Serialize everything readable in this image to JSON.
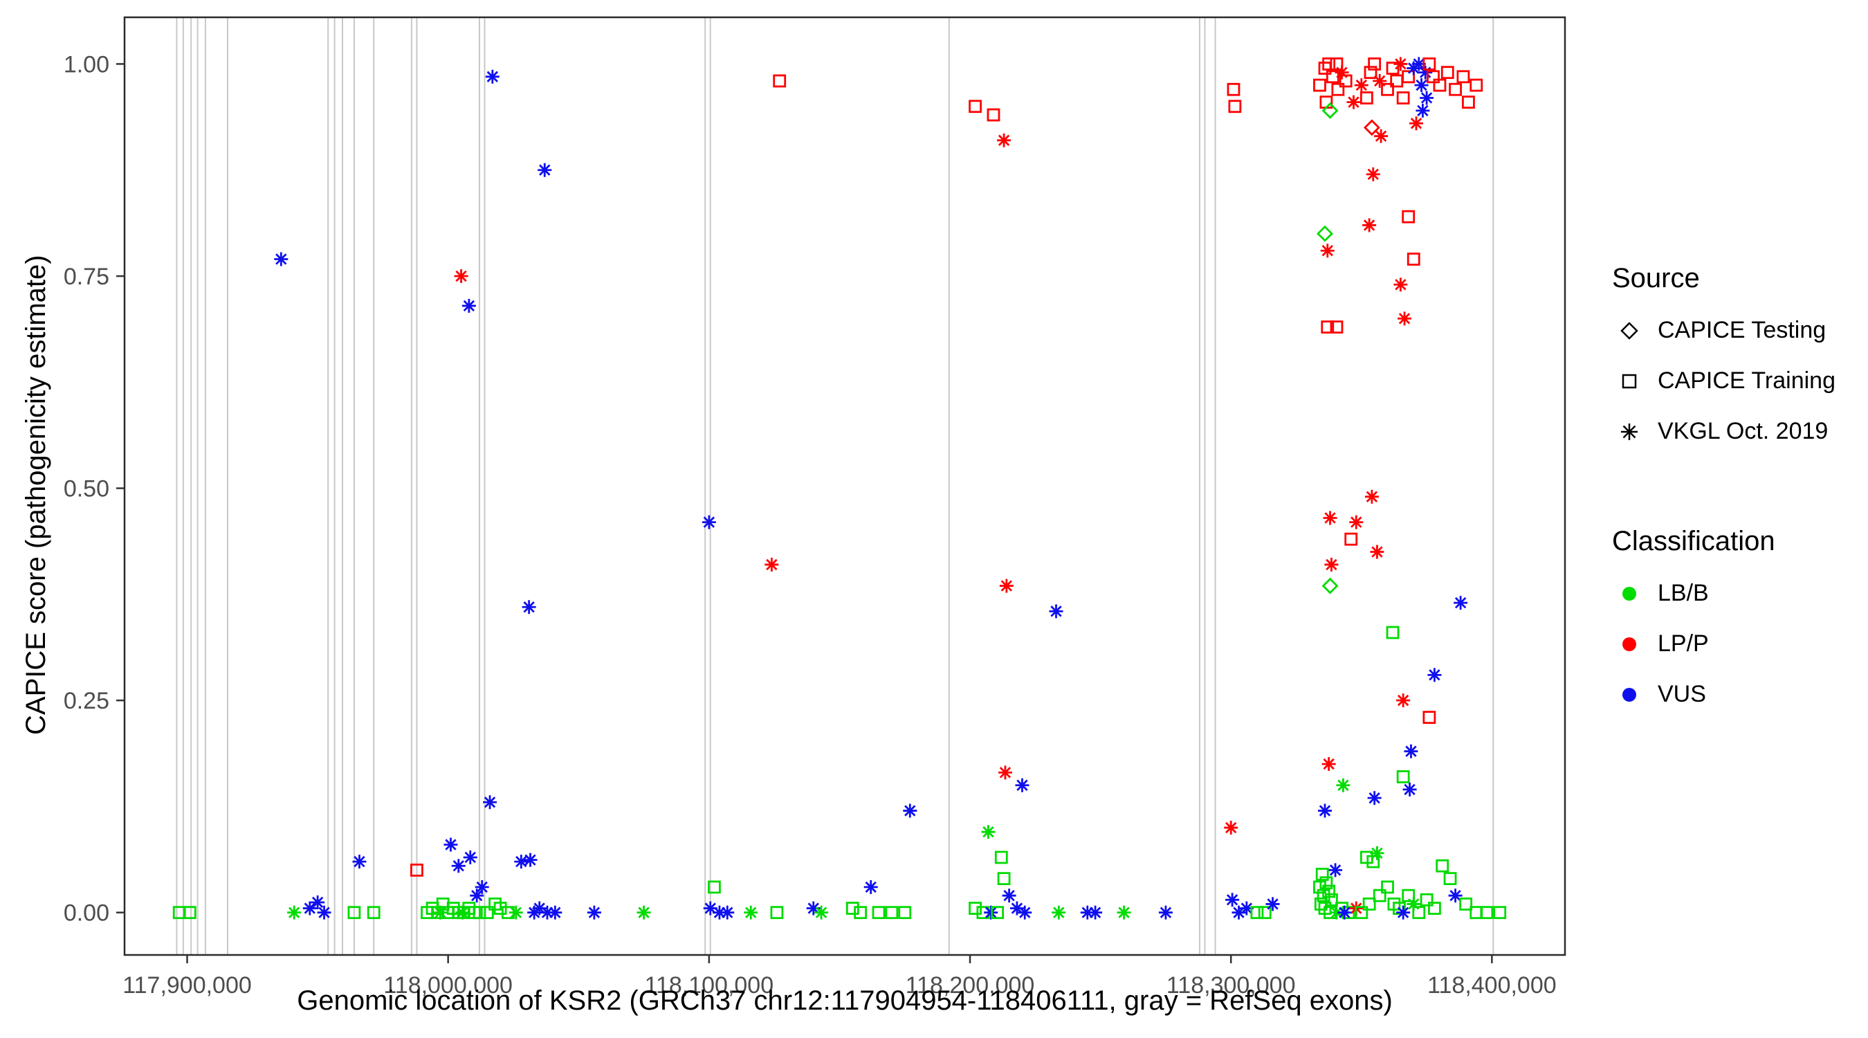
{
  "figure": {
    "background": "#FFFFFF"
  },
  "chart_data": {
    "type": "scatter",
    "title": "",
    "xlabel": "Genomic location of KSR2 (GRCh37 chr12:117904954-118406111, gray = RefSeq exons)",
    "ylabel": "CAPICE score (pathogenicity estimate)",
    "x_domain": [
      117876000,
      118428000
    ],
    "y_domain": [
      -0.05,
      1.055
    ],
    "x_ticks": [
      {
        "value": 117900000,
        "label": "117,900,000"
      },
      {
        "value": 118000000,
        "label": "118,000,000"
      },
      {
        "value": 118100000,
        "label": "118,100,000"
      },
      {
        "value": 118200000,
        "label": "118,200,000"
      },
      {
        "value": 118300000,
        "label": "118,300,000"
      },
      {
        "value": 118400000,
        "label": "118,400,000"
      }
    ],
    "y_ticks": [
      {
        "value": 0.0,
        "label": "0.00"
      },
      {
        "value": 0.25,
        "label": "0.25"
      },
      {
        "value": 0.5,
        "label": "0.50"
      },
      {
        "value": 0.75,
        "label": "0.75"
      },
      {
        "value": 1.0,
        "label": "1.00"
      }
    ],
    "grid": false,
    "legend_position": "right",
    "legend": {
      "source": {
        "title": "Source",
        "items": [
          {
            "shape": "diamond",
            "label": "CAPICE Testing"
          },
          {
            "shape": "square",
            "label": "CAPICE Training"
          },
          {
            "shape": "asterisk",
            "label": "VKGL Oct. 2019"
          }
        ]
      },
      "classification": {
        "title": "Classification",
        "items": [
          {
            "color_key": "LB/B",
            "label": "LB/B"
          },
          {
            "color_key": "LP/P",
            "label": "LP/P"
          },
          {
            "color_key": "VUS",
            "label": "VUS"
          }
        ]
      }
    },
    "colors": {
      "LB/B": "#00DB00",
      "LP/P": "#FF0000",
      "VUS": "#0F0FEE"
    },
    "shapes": {
      "test": "diamond",
      "train": "square",
      "vkgl": "asterisk"
    },
    "source_names": {
      "test": "CAPICE Testing",
      "train": "CAPICE Training",
      "vkgl": "VKGL Oct. 2019"
    },
    "exon_color": "#C8C8C8",
    "exon_note": "gray = RefSeq exons",
    "exon_positions": [
      117896000,
      117898500,
      117901500,
      117904000,
      117907000,
      117915500,
      117954000,
      117956500,
      117959500,
      117964000,
      117971500,
      117986000,
      117988000,
      118012000,
      118014000,
      118098500,
      118100500,
      118192000,
      118288000,
      118290000,
      118294000,
      118400500
    ],
    "points_format": [
      "genomic_position",
      "capice_score",
      "source",
      "classification"
    ],
    "points": [
      [
        117897000,
        0.0,
        "train",
        "LB/B"
      ],
      [
        117901000,
        0.0,
        "train",
        "LB/B"
      ],
      [
        117936000,
        0.77,
        "vkgl",
        "VUS"
      ],
      [
        117941000,
        0.0,
        "vkgl",
        "LB/B"
      ],
      [
        117947000,
        0.005,
        "vkgl",
        "VUS"
      ],
      [
        117950000,
        0.012,
        "vkgl",
        "VUS"
      ],
      [
        117952500,
        0.0,
        "vkgl",
        "VUS"
      ],
      [
        117964000,
        0.0,
        "train",
        "LB/B"
      ],
      [
        117966000,
        0.06,
        "vkgl",
        "VUS"
      ],
      [
        117971500,
        0.0,
        "train",
        "LB/B"
      ],
      [
        117988000,
        0.05,
        "train",
        "LP/P"
      ],
      [
        118005000,
        0.75,
        "vkgl",
        "LP/P"
      ],
      [
        118008000,
        0.715,
        "vkgl",
        "VUS"
      ],
      [
        118017000,
        0.985,
        "vkgl",
        "VUS"
      ],
      [
        118031000,
        0.36,
        "vkgl",
        "VUS"
      ],
      [
        118037000,
        0.875,
        "vkgl",
        "VUS"
      ],
      [
        118016000,
        0.13,
        "vkgl",
        "VUS"
      ],
      [
        118001000,
        0.08,
        "vkgl",
        "VUS"
      ],
      [
        118004000,
        0.055,
        "vkgl",
        "VUS"
      ],
      [
        118008500,
        0.065,
        "vkgl",
        "VUS"
      ],
      [
        118028000,
        0.06,
        "vkgl",
        "VUS"
      ],
      [
        118031500,
        0.062,
        "vkgl",
        "VUS"
      ],
      [
        118013000,
        0.03,
        "vkgl",
        "VUS"
      ],
      [
        118011000,
        0.02,
        "vkgl",
        "VUS"
      ],
      [
        117992000,
        0.0,
        "train",
        "LB/B"
      ],
      [
        117994000,
        0.005,
        "train",
        "LB/B"
      ],
      [
        117996000,
        0.0,
        "train",
        "LB/B"
      ],
      [
        117998000,
        0.01,
        "train",
        "LB/B"
      ],
      [
        118000000,
        0.0,
        "train",
        "LB/B"
      ],
      [
        118002000,
        0.005,
        "train",
        "LB/B"
      ],
      [
        118004000,
        0.0,
        "train",
        "LB/B"
      ],
      [
        118006000,
        0.0,
        "train",
        "LB/B"
      ],
      [
        118008000,
        0.005,
        "train",
        "LB/B"
      ],
      [
        118010000,
        0.0,
        "train",
        "LB/B"
      ],
      [
        118012000,
        0.0,
        "train",
        "LB/B"
      ],
      [
        117997000,
        0.0,
        "vkgl",
        "LB/B"
      ],
      [
        118005500,
        0.0,
        "vkgl",
        "LB/B"
      ],
      [
        118015000,
        0.0,
        "train",
        "LB/B"
      ],
      [
        118018000,
        0.01,
        "train",
        "LB/B"
      ],
      [
        118020000,
        0.005,
        "train",
        "LB/B"
      ],
      [
        118023000,
        0.0,
        "train",
        "LB/B"
      ],
      [
        118026000,
        0.0,
        "vkgl",
        "LB/B"
      ],
      [
        118033000,
        0.0,
        "vkgl",
        "VUS"
      ],
      [
        118035000,
        0.005,
        "vkgl",
        "VUS"
      ],
      [
        118038000,
        0.0,
        "vkgl",
        "VUS"
      ],
      [
        118041000,
        0.0,
        "vkgl",
        "VUS"
      ],
      [
        118056000,
        0.0,
        "vkgl",
        "VUS"
      ],
      [
        118075000,
        0.0,
        "vkgl",
        "LB/B"
      ],
      [
        118100000,
        0.46,
        "vkgl",
        "VUS"
      ],
      [
        118102000,
        0.03,
        "train",
        "LB/B"
      ],
      [
        118100500,
        0.005,
        "vkgl",
        "VUS"
      ],
      [
        118104000,
        0.0,
        "vkgl",
        "VUS"
      ],
      [
        118107000,
        0.0,
        "vkgl",
        "VUS"
      ],
      [
        118116000,
        0.0,
        "vkgl",
        "LB/B"
      ],
      [
        118127000,
        0.98,
        "train",
        "LP/P"
      ],
      [
        118124000,
        0.41,
        "vkgl",
        "LP/P"
      ],
      [
        118126000,
        0.0,
        "train",
        "LB/B"
      ],
      [
        118140000,
        0.005,
        "vkgl",
        "VUS"
      ],
      [
        118143000,
        0.0,
        "vkgl",
        "LB/B"
      ],
      [
        118155000,
        0.005,
        "train",
        "LB/B"
      ],
      [
        118158000,
        0.0,
        "train",
        "LB/B"
      ],
      [
        118162000,
        0.03,
        "vkgl",
        "VUS"
      ],
      [
        118165000,
        0.0,
        "train",
        "LB/B"
      ],
      [
        118170000,
        0.0,
        "train",
        "LB/B"
      ],
      [
        118175000,
        0.0,
        "train",
        "LB/B"
      ],
      [
        118177000,
        0.12,
        "vkgl",
        "VUS"
      ],
      [
        118202000,
        0.95,
        "train",
        "LP/P"
      ],
      [
        118209000,
        0.94,
        "train",
        "LP/P"
      ],
      [
        118213000,
        0.91,
        "vkgl",
        "LP/P"
      ],
      [
        118214000,
        0.385,
        "vkgl",
        "LP/P"
      ],
      [
        118233000,
        0.355,
        "vkgl",
        "VUS"
      ],
      [
        118213500,
        0.165,
        "vkgl",
        "LP/P"
      ],
      [
        118220000,
        0.15,
        "vkgl",
        "VUS"
      ],
      [
        118207000,
        0.095,
        "vkgl",
        "LB/B"
      ],
      [
        118212000,
        0.065,
        "train",
        "LB/B"
      ],
      [
        118213000,
        0.04,
        "train",
        "LB/B"
      ],
      [
        118215000,
        0.02,
        "vkgl",
        "VUS"
      ],
      [
        118202000,
        0.005,
        "train",
        "LB/B"
      ],
      [
        118205000,
        0.0,
        "train",
        "LB/B"
      ],
      [
        118208000,
        0.0,
        "vkgl",
        "VUS"
      ],
      [
        118210500,
        0.0,
        "train",
        "LB/B"
      ],
      [
        118218000,
        0.005,
        "vkgl",
        "VUS"
      ],
      [
        118221000,
        0.0,
        "vkgl",
        "VUS"
      ],
      [
        118234000,
        0.0,
        "vkgl",
        "LB/B"
      ],
      [
        118245000,
        0.0,
        "vkgl",
        "VUS"
      ],
      [
        118248000,
        0.0,
        "vkgl",
        "VUS"
      ],
      [
        118259000,
        0.0,
        "vkgl",
        "LB/B"
      ],
      [
        118275000,
        0.0,
        "vkgl",
        "VUS"
      ],
      [
        118301000,
        0.97,
        "train",
        "LP/P"
      ],
      [
        118301500,
        0.95,
        "train",
        "LP/P"
      ],
      [
        118300000,
        0.1,
        "vkgl",
        "LP/P"
      ],
      [
        118300500,
        0.015,
        "vkgl",
        "VUS"
      ],
      [
        118303000,
        0.0,
        "vkgl",
        "VUS"
      ],
      [
        118306000,
        0.005,
        "vkgl",
        "VUS"
      ],
      [
        118310000,
        0.0,
        "train",
        "LB/B"
      ],
      [
        118313000,
        0.0,
        "train",
        "LB/B"
      ],
      [
        118316000,
        0.01,
        "vkgl",
        "VUS"
      ],
      [
        118334000,
        0.975,
        "train",
        "LP/P"
      ],
      [
        118336000,
        0.995,
        "train",
        "LP/P"
      ],
      [
        118337500,
        1.0,
        "train",
        "LP/P"
      ],
      [
        118339000,
        0.985,
        "train",
        "LP/P"
      ],
      [
        118340500,
        1.0,
        "train",
        "LP/P"
      ],
      [
        118341000,
        0.97,
        "train",
        "LP/P"
      ],
      [
        118342500,
        0.99,
        "vkgl",
        "LP/P"
      ],
      [
        118344000,
        0.98,
        "train",
        "LP/P"
      ],
      [
        118336500,
        0.955,
        "train",
        "LP/P"
      ],
      [
        118338000,
        0.945,
        "test",
        "LB/B"
      ],
      [
        118347000,
        0.955,
        "vkgl",
        "LP/P"
      ],
      [
        118350000,
        0.975,
        "vkgl",
        "LP/P"
      ],
      [
        118352000,
        0.96,
        "train",
        "LP/P"
      ],
      [
        118353500,
        0.99,
        "train",
        "LP/P"
      ],
      [
        118355000,
        1.0,
        "train",
        "LP/P"
      ],
      [
        118354000,
        0.925,
        "test",
        "LP/P"
      ],
      [
        118357000,
        0.98,
        "vkgl",
        "LP/P"
      ],
      [
        118357500,
        0.915,
        "vkgl",
        "LP/P"
      ],
      [
        118360000,
        0.97,
        "train",
        "LP/P"
      ],
      [
        118362000,
        0.995,
        "train",
        "LP/P"
      ],
      [
        118363500,
        0.98,
        "train",
        "LP/P"
      ],
      [
        118365000,
        1.0,
        "vkgl",
        "LP/P"
      ],
      [
        118366000,
        0.96,
        "train",
        "LP/P"
      ],
      [
        118368000,
        0.985,
        "train",
        "LP/P"
      ],
      [
        118370000,
        0.995,
        "vkgl",
        "VUS"
      ],
      [
        118372000,
        1.0,
        "vkgl",
        "VUS"
      ],
      [
        118373000,
        0.975,
        "vkgl",
        "VUS"
      ],
      [
        118374500,
        0.99,
        "vkgl",
        "VUS"
      ],
      [
        118375000,
        0.96,
        "vkgl",
        "VUS"
      ],
      [
        118376000,
        1.0,
        "train",
        "LP/P"
      ],
      [
        118377500,
        0.985,
        "train",
        "LP/P"
      ],
      [
        118373500,
        0.945,
        "vkgl",
        "VUS"
      ],
      [
        118371000,
        0.93,
        "vkgl",
        "LP/P"
      ],
      [
        118380000,
        0.975,
        "train",
        "LP/P"
      ],
      [
        118383000,
        0.99,
        "train",
        "LP/P"
      ],
      [
        118386000,
        0.97,
        "train",
        "LP/P"
      ],
      [
        118389000,
        0.985,
        "train",
        "LP/P"
      ],
      [
        118391000,
        0.955,
        "train",
        "LP/P"
      ],
      [
        118394000,
        0.975,
        "train",
        "LP/P"
      ],
      [
        118354500,
        0.87,
        "vkgl",
        "LP/P"
      ],
      [
        118353000,
        0.81,
        "vkgl",
        "LP/P"
      ],
      [
        118336000,
        0.8,
        "test",
        "LB/B"
      ],
      [
        118337000,
        0.78,
        "vkgl",
        "LP/P"
      ],
      [
        118368000,
        0.82,
        "train",
        "LP/P"
      ],
      [
        118370000,
        0.77,
        "train",
        "LP/P"
      ],
      [
        118365000,
        0.74,
        "vkgl",
        "LP/P"
      ],
      [
        118366500,
        0.7,
        "vkgl",
        "LP/P"
      ],
      [
        118337000,
        0.69,
        "train",
        "LP/P"
      ],
      [
        118340500,
        0.69,
        "train",
        "LP/P"
      ],
      [
        118338000,
        0.465,
        "vkgl",
        "LP/P"
      ],
      [
        118354000,
        0.49,
        "vkgl",
        "LP/P"
      ],
      [
        118348000,
        0.46,
        "vkgl",
        "LP/P"
      ],
      [
        118346000,
        0.44,
        "train",
        "LP/P"
      ],
      [
        118356000,
        0.425,
        "vkgl",
        "LP/P"
      ],
      [
        118338500,
        0.41,
        "vkgl",
        "LP/P"
      ],
      [
        118338000,
        0.385,
        "test",
        "LB/B"
      ],
      [
        118388000,
        0.365,
        "vkgl",
        "VUS"
      ],
      [
        118362000,
        0.33,
        "train",
        "LB/B"
      ],
      [
        118378000,
        0.28,
        "vkgl",
        "VUS"
      ],
      [
        118366000,
        0.25,
        "vkgl",
        "LP/P"
      ],
      [
        118376000,
        0.23,
        "train",
        "LP/P"
      ],
      [
        118369000,
        0.19,
        "vkgl",
        "VUS"
      ],
      [
        118337500,
        0.175,
        "vkgl",
        "LP/P"
      ],
      [
        118343000,
        0.15,
        "vkgl",
        "LB/B"
      ],
      [
        118366000,
        0.16,
        "train",
        "LB/B"
      ],
      [
        118368500,
        0.145,
        "vkgl",
        "VUS"
      ],
      [
        118355000,
        0.135,
        "vkgl",
        "VUS"
      ],
      [
        118336000,
        0.12,
        "vkgl",
        "VUS"
      ],
      [
        118356000,
        0.07,
        "vkgl",
        "LB/B"
      ],
      [
        118352000,
        0.065,
        "train",
        "LB/B"
      ],
      [
        118354500,
        0.06,
        "train",
        "LB/B"
      ],
      [
        118340000,
        0.05,
        "vkgl",
        "VUS"
      ],
      [
        118335000,
        0.045,
        "train",
        "LB/B"
      ],
      [
        118336500,
        0.035,
        "train",
        "LB/B"
      ],
      [
        118334000,
        0.03,
        "train",
        "LB/B"
      ],
      [
        118337500,
        0.025,
        "train",
        "LB/B"
      ],
      [
        118335500,
        0.02,
        "train",
        "LB/B"
      ],
      [
        118338500,
        0.015,
        "train",
        "LB/B"
      ],
      [
        118334500,
        0.01,
        "train",
        "LB/B"
      ],
      [
        118336000,
        0.005,
        "train",
        "LB/B"
      ],
      [
        118338000,
        0.0,
        "train",
        "LB/B"
      ],
      [
        118340500,
        0.0,
        "vkgl",
        "LB/B"
      ],
      [
        118342500,
        0.005,
        "train",
        "LB/B"
      ],
      [
        118345000,
        0.0,
        "train",
        "LB/B"
      ],
      [
        118348000,
        0.005,
        "vkgl",
        "LP/P"
      ],
      [
        118343500,
        0.0,
        "vkgl",
        "VUS"
      ],
      [
        118350000,
        0.0,
        "train",
        "LB/B"
      ],
      [
        118353000,
        0.01,
        "train",
        "LB/B"
      ],
      [
        118357000,
        0.02,
        "train",
        "LB/B"
      ],
      [
        118360000,
        0.03,
        "train",
        "LB/B"
      ],
      [
        118362500,
        0.01,
        "train",
        "LB/B"
      ],
      [
        118364500,
        0.005,
        "train",
        "LB/B"
      ],
      [
        118366000,
        0.0,
        "vkgl",
        "VUS"
      ],
      [
        118368000,
        0.02,
        "train",
        "LB/B"
      ],
      [
        118370000,
        0.01,
        "vkgl",
        "LB/B"
      ],
      [
        118372000,
        0.0,
        "train",
        "LB/B"
      ],
      [
        118375000,
        0.015,
        "train",
        "LB/B"
      ],
      [
        118378000,
        0.005,
        "train",
        "LB/B"
      ],
      [
        118381000,
        0.055,
        "train",
        "LB/B"
      ],
      [
        118384000,
        0.04,
        "train",
        "LB/B"
      ],
      [
        118386000,
        0.02,
        "vkgl",
        "VUS"
      ],
      [
        118390000,
        0.01,
        "train",
        "LB/B"
      ],
      [
        118394000,
        0.0,
        "train",
        "LB/B"
      ],
      [
        118398000,
        0.0,
        "train",
        "LB/B"
      ],
      [
        118403000,
        0.0,
        "train",
        "LB/B"
      ]
    ]
  }
}
